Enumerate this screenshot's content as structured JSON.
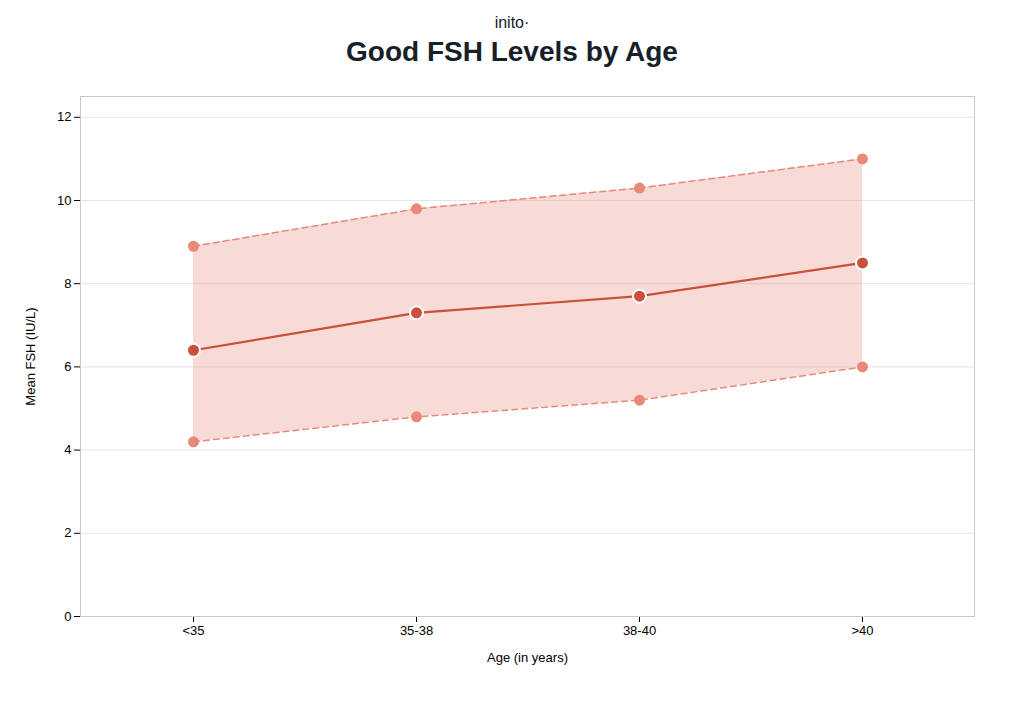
{
  "chart_data": {
    "type": "line",
    "title": "Good FSH Levels by Age",
    "subtitle": "inito·",
    "x_label": "Age (in years)",
    "y_label": "Mean FSH (IU/L)",
    "categories": [
      "<35",
      "35-38",
      "38-40",
      ">40"
    ],
    "values": [
      6.4,
      7.3,
      7.7,
      8.5
    ],
    "upper": [
      8.9,
      9.8,
      10.3,
      11.0
    ],
    "lower": [
      4.2,
      4.8,
      5.2,
      6.0
    ],
    "color": "#c9503a",
    "band_color": "#e8897a",
    "marker": "circle",
    "ylim": [
      0,
      12.5
    ],
    "yticks": [
      0,
      2,
      4,
      6,
      8,
      10,
      12
    ],
    "grid": true
  }
}
